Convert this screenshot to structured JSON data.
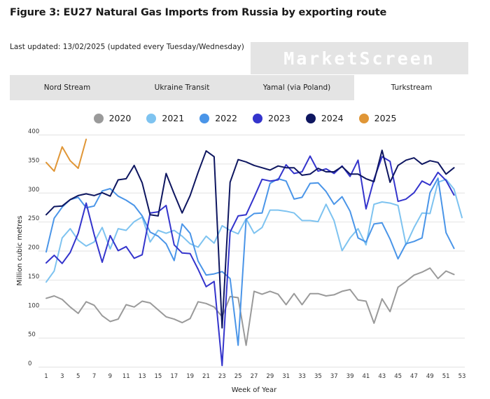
{
  "page": {
    "title": "Figure 3: EU27 Natural Gas Imports from Russia by exporting route",
    "updated": "Last updated: 13/02/2025 (updated every Tuesday/Wednesday)",
    "logo": "MarketScreen"
  },
  "tabs": [
    {
      "label": "Nord Stream",
      "active": false
    },
    {
      "label": "Ukraine Transit",
      "active": false
    },
    {
      "label": "Yamal (via Poland)",
      "active": false
    },
    {
      "label": "Turkstream",
      "active": true
    }
  ],
  "colors": {
    "2020": "#9a9a9a",
    "2021": "#7ec3f0",
    "2022": "#4a95e8",
    "2023": "#3434cc",
    "2024": "#0e1660",
    "2025": "#e09636",
    "grid": "#e2e2e2",
    "tab_bg": "#e4e4e4"
  },
  "chart_data": {
    "type": "line",
    "title": "Figure 3: EU27 Natural Gas Imports from Russia by exporting route",
    "xlabel": "Week of Year",
    "ylabel": "Million cubic metres",
    "xlim": [
      1,
      53
    ],
    "ylim": [
      0,
      400
    ],
    "xticks": [
      1,
      3,
      5,
      7,
      9,
      11,
      13,
      15,
      17,
      19,
      21,
      23,
      25,
      27,
      29,
      31,
      33,
      35,
      37,
      39,
      41,
      43,
      45,
      47,
      49,
      51,
      53
    ],
    "yticks": [
      0,
      50,
      100,
      150,
      200,
      250,
      300,
      350,
      400
    ],
    "grid": true,
    "legend_position": "top",
    "series": [
      {
        "name": "2020",
        "values": [
          118,
          122,
          116,
          103,
          92,
          112,
          106,
          88,
          78,
          82,
          107,
          103,
          113,
          110,
          98,
          86,
          82,
          76,
          83,
          112,
          109,
          103,
          86,
          121,
          119,
          37,
          130,
          125,
          130,
          125,
          107,
          126,
          107,
          126,
          126,
          122,
          124,
          130,
          133,
          115,
          113,
          75,
          117,
          95,
          137,
          147,
          158,
          163,
          170,
          152,
          165,
          159
        ]
      },
      {
        "name": "2021",
        "values": [
          146,
          165,
          222,
          238,
          218,
          208,
          215,
          240,
          203,
          238,
          235,
          250,
          258,
          215,
          235,
          230,
          235,
          225,
          212,
          206,
          225,
          213,
          243,
          235,
          229,
          255,
          230,
          240,
          270,
          270,
          268,
          265,
          252,
          252,
          250,
          280,
          252,
          200,
          222,
          238,
          210,
          280,
          284,
          282,
          278,
          210,
          240,
          265,
          264,
          318,
          323,
          306,
          257
        ]
      },
      {
        "name": "2022",
        "values": [
          198,
          256,
          275,
          288,
          292,
          274,
          277,
          303,
          307,
          294,
          287,
          278,
          260,
          232,
          225,
          212,
          183,
          246,
          230,
          182,
          158,
          160,
          164,
          152,
          37,
          254,
          264,
          265,
          316,
          324,
          320,
          289,
          292,
          316,
          317,
          302,
          280,
          293,
          268,
          222,
          215,
          246,
          248,
          220,
          186,
          212,
          216,
          222,
          300,
          325,
          231,
          204
        ]
      },
      {
        "name": "2023",
        "values": [
          179,
          192,
          178,
          197,
          230,
          282,
          228,
          180,
          226,
          200,
          207,
          187,
          193,
          265,
          267,
          278,
          210,
          196,
          195,
          168,
          138,
          147,
          2,
          232,
          260,
          262,
          292,
          323,
          320,
          322,
          348,
          333,
          336,
          363,
          337,
          341,
          333,
          346,
          328,
          356,
          272,
          323,
          362,
          354,
          285,
          289,
          300,
          320,
          313,
          335,
          321,
          296
        ]
      },
      {
        "name": "2024",
        "values": [
          262,
          276,
          277,
          288,
          295,
          298,
          295,
          300,
          294,
          322,
          324,
          347,
          317,
          262,
          260,
          333,
          298,
          265,
          295,
          335,
          372,
          362,
          67,
          318,
          357,
          353,
          347,
          343,
          339,
          346,
          343,
          343,
          330,
          332,
          342,
          336,
          336,
          345,
          332,
          332,
          324,
          319,
          373,
          318,
          347,
          356,
          360,
          349,
          355,
          352,
          332,
          343
        ]
      },
      {
        "name": "2025",
        "values": [
          352,
          337,
          379,
          355,
          342,
          392
        ]
      }
    ]
  }
}
